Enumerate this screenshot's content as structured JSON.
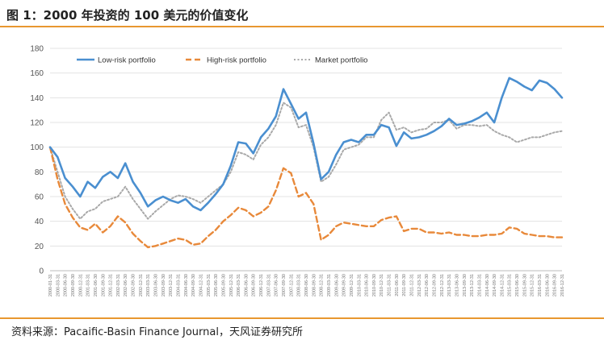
{
  "figure": {
    "title": "图 1：2000 年投资的 100 美元的价值变化",
    "source": "资料来源：Pacaific-Basin Finance Journal，天风证券研究所"
  },
  "colors": {
    "low": "#4a8fd0",
    "high": "#e8893a",
    "market": "#a9a9a9",
    "accent": "#e8972f",
    "grid": "#e3e3e3"
  },
  "chart_data": {
    "type": "line",
    "title": "",
    "xlabel": "",
    "ylabel": "",
    "ylim": [
      0,
      180
    ],
    "yticks": [
      0,
      20,
      40,
      60,
      80,
      100,
      120,
      140,
      160,
      180
    ],
    "grid": true,
    "legend": "top-left",
    "x": [
      "2000-01-31",
      "2000-03-31",
      "2000-06-30",
      "2000-09-30",
      "2000-12-31",
      "2001-03-31",
      "2001-06-30",
      "2001-09-30",
      "2001-12-31",
      "2002-03-31",
      "2002-06-30",
      "2002-09-30",
      "2002-12-31",
      "2003-03-31",
      "2003-06-30",
      "2003-09-30",
      "2003-12-31",
      "2004-03-31",
      "2004-06-30",
      "2004-09-30",
      "2004-12-31",
      "2005-03-31",
      "2005-06-30",
      "2005-09-30",
      "2005-12-31",
      "2006-03-31",
      "2006-06-30",
      "2006-09-30",
      "2006-12-31",
      "2007-03-31",
      "2007-06-30",
      "2007-09-30",
      "2007-12-31",
      "2008-03-31",
      "2008-06-30",
      "2008-09-30",
      "2008-12-31",
      "2009-03-31",
      "2009-06-30",
      "2009-09-30",
      "2009-12-31",
      "2010-03-31",
      "2010-06-30",
      "2010-09-30",
      "2010-12-31",
      "2011-03-31",
      "2011-06-30",
      "2011-09-30",
      "2011-12-31",
      "2012-03-31",
      "2012-06-30",
      "2012-09-30",
      "2012-12-31",
      "2013-03-31",
      "2013-06-30",
      "2013-09-30",
      "2013-12-31",
      "2014-03-31",
      "2014-06-30",
      "2014-09-30",
      "2014-12-31",
      "2015-03-31",
      "2015-06-30",
      "2015-09-30",
      "2015-12-31",
      "2016-03-31",
      "2016-06-30",
      "2016-09-30",
      "2016-12-31"
    ],
    "series": [
      {
        "name": "Low-risk portfolio",
        "style": "solid",
        "values": [
          100,
          92,
          75,
          68,
          60,
          72,
          67,
          76,
          80,
          75,
          87,
          72,
          63,
          52,
          57,
          60,
          57,
          55,
          58,
          52,
          49,
          55,
          62,
          70,
          85,
          104,
          103,
          95,
          108,
          115,
          125,
          147,
          135,
          123,
          128,
          103,
          74,
          80,
          94,
          104,
          106,
          104,
          110,
          110,
          118,
          116,
          101,
          112,
          107,
          108,
          110,
          113,
          117,
          123,
          118,
          119,
          121,
          124,
          128,
          120,
          140,
          156,
          153,
          149,
          146,
          154,
          152,
          147,
          140
        ]
      },
      {
        "name": "High-risk portfolio",
        "style": "dashed",
        "values": [
          100,
          74,
          54,
          43,
          35,
          33,
          38,
          31,
          36,
          44,
          39,
          30,
          24,
          19,
          20,
          22,
          24,
          26,
          25,
          21,
          22,
          28,
          33,
          40,
          45,
          51,
          49,
          44,
          47,
          52,
          65,
          83,
          79,
          60,
          63,
          54,
          25,
          29,
          36,
          39,
          38,
          37,
          36,
          36,
          41,
          43,
          44,
          32,
          34,
          34,
          31,
          31,
          30,
          31,
          29,
          29,
          28,
          28,
          29,
          29,
          30,
          35,
          34,
          30,
          29,
          28,
          28,
          27,
          27
        ]
      },
      {
        "name": "Market portfolio",
        "style": "dotted",
        "values": [
          100,
          80,
          60,
          50,
          42,
          48,
          50,
          56,
          58,
          60,
          68,
          58,
          50,
          42,
          48,
          53,
          58,
          61,
          60,
          58,
          55,
          60,
          65,
          70,
          80,
          96,
          94,
          90,
          102,
          108,
          118,
          136,
          132,
          116,
          118,
          100,
          72,
          76,
          86,
          98,
          100,
          102,
          108,
          108,
          122,
          128,
          114,
          116,
          112,
          114,
          115,
          120,
          120,
          122,
          115,
          118,
          118,
          117,
          118,
          113,
          110,
          108,
          104,
          106,
          108,
          108,
          110,
          112,
          113
        ]
      }
    ]
  }
}
